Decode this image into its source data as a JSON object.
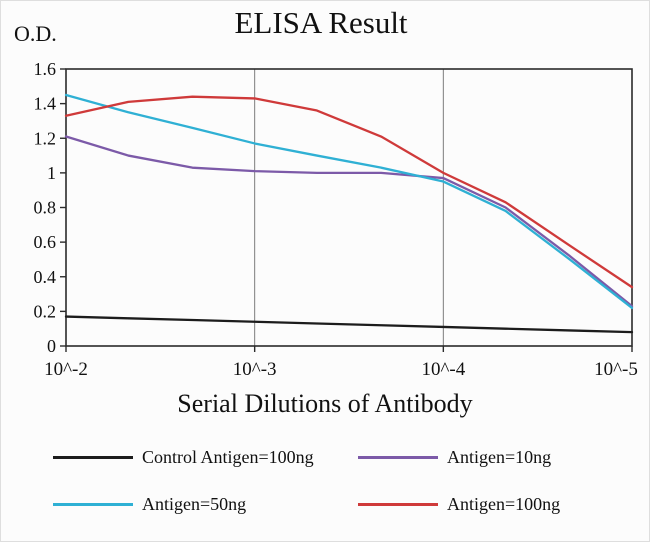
{
  "chart_data": {
    "type": "line",
    "title": "ELISA Result",
    "ylabel": "O.D.",
    "xlabel": "Serial Dilutions of Antibody",
    "ylim": [
      0,
      1.6
    ],
    "y_tick_labels": [
      "0",
      "0.2",
      "0.4",
      "0.6",
      "0.8",
      "1",
      "1.2",
      "1.4",
      "1.6"
    ],
    "x_ticks": [
      {
        "exp": -2,
        "label": "10^-2"
      },
      {
        "exp": -3,
        "label": "10^-3"
      },
      {
        "exp": -4,
        "label": "10^-4"
      },
      {
        "exp": -5,
        "label": "10^-5"
      }
    ],
    "grid": "vertical",
    "grid_exponents": [
      -3,
      -4
    ],
    "legend_position": "bottom",
    "x_exponents": [
      -2,
      -2.33,
      -2.67,
      -3,
      -3.33,
      -3.67,
      -4,
      -4.33,
      -4.67,
      -5
    ],
    "series": [
      {
        "name": "Control Antigen=100ng",
        "color": "#1c1c1c",
        "values": [
          0.17,
          0.16,
          0.15,
          0.14,
          0.13,
          0.12,
          0.11,
          0.1,
          0.09,
          0.08
        ]
      },
      {
        "name": "Antigen=10ng",
        "color": "#7c5aa8",
        "values": [
          1.21,
          1.1,
          1.03,
          1.01,
          1.0,
          1.0,
          0.97,
          0.8,
          0.52,
          0.23
        ]
      },
      {
        "name": "Antigen=50ng",
        "color": "#2fb0d4",
        "values": [
          1.45,
          1.35,
          1.26,
          1.17,
          1.1,
          1.03,
          0.95,
          0.78,
          0.5,
          0.22
        ]
      },
      {
        "name": "Antigen=100ng",
        "color": "#cf3a3a",
        "values": [
          1.33,
          1.41,
          1.44,
          1.43,
          1.36,
          1.21,
          1.0,
          0.83,
          0.58,
          0.34
        ]
      }
    ]
  }
}
